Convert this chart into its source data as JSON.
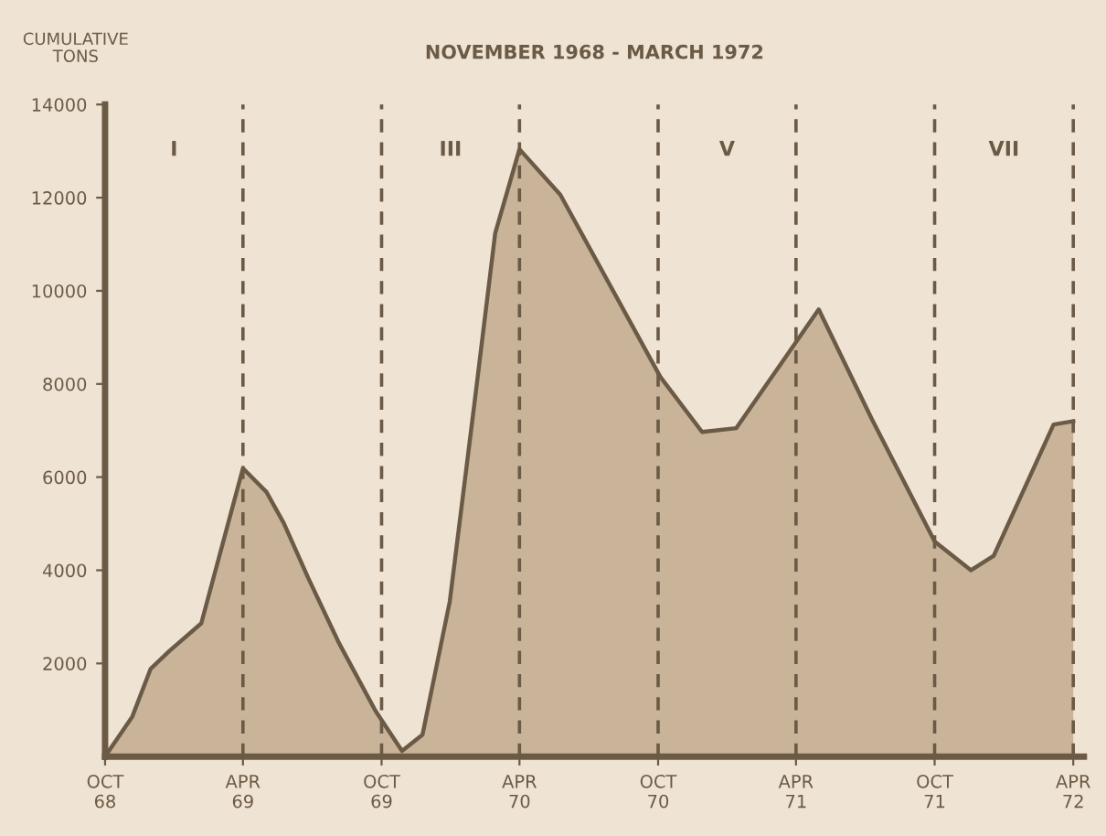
{
  "chart_data": {
    "type": "area",
    "title": "NOVEMBER 1968 - MARCH 1972",
    "ylabel": "CUMULATIVE\nTONS",
    "x": [
      "1968-10-01",
      "1968-11-06",
      "1968-11-30",
      "1968-12-25",
      "1969-02-05",
      "1969-04-01",
      "1969-05-02",
      "1969-05-25",
      "1969-06-26",
      "1969-08-06",
      "1969-09-23",
      "1969-10-28",
      "1969-11-24",
      "1969-12-30",
      "1970-02-01",
      "1970-02-28",
      "1970-04-01",
      "1970-05-25",
      "1970-10-04",
      "1970-11-28",
      "1971-01-12",
      "1971-05-01",
      "1971-07-10",
      "1971-10-01",
      "1971-11-18",
      "1971-12-18",
      "1972-03-06",
      "1972-04-01"
    ],
    "series": [
      {
        "color": "#c4ae93",
        "values": [
          0,
          860,
          1880,
          2270,
          2860,
          6190,
          5680,
          5010,
          3840,
          2430,
          980,
          120,
          470,
          3330,
          7640,
          11240,
          13040,
          12060,
          8150,
          6970,
          7050,
          9600,
          7250,
          4620,
          4000,
          4310,
          7130,
          7200
        ]
      }
    ],
    "xlim": [
      "1968-10-01",
      "1972-04-15"
    ],
    "xticks": [
      {
        "value": "1968-10-01",
        "label": "OCT\n68"
      },
      {
        "value": "1969-04-01",
        "label": "APR\n69"
      },
      {
        "value": "1969-10-01",
        "label": "OCT\n69"
      },
      {
        "value": "1970-04-01",
        "label": "APR\n70"
      },
      {
        "value": "1970-10-01",
        "label": "OCT\n70"
      },
      {
        "value": "1971-04-01",
        "label": "APR\n71"
      },
      {
        "value": "1971-10-01",
        "label": "OCT\n71"
      },
      {
        "value": "1972-04-01",
        "label": "APR\n72"
      }
    ],
    "ylim": [
      0,
      14000
    ],
    "yticks": [
      2000,
      4000,
      6000,
      8000,
      10000,
      12000,
      14000
    ],
    "ref_lines": [
      {
        "axis": "x",
        "value": "1969-04-01",
        "line_style": "dashed",
        "color": "#6b5a45"
      },
      {
        "axis": "x",
        "value": "1969-10-01",
        "line_style": "dashed",
        "color": "#6b5a45"
      },
      {
        "axis": "x",
        "value": "1970-04-01",
        "line_style": "dashed",
        "color": "#6b5a45"
      },
      {
        "axis": "x",
        "value": "1970-10-01",
        "line_style": "dashed",
        "color": "#6b5a45"
      },
      {
        "axis": "x",
        "value": "1971-04-01",
        "line_style": "dashed",
        "color": "#6b5a45"
      },
      {
        "axis": "x",
        "value": "1971-10-01",
        "line_style": "dashed",
        "color": "#6b5a45"
      },
      {
        "axis": "x",
        "value": "1972-04-01",
        "line_style": "dashed",
        "color": "#6b5a45"
      }
    ],
    "annotations": [
      "I",
      "III",
      "V",
      "VII"
    ],
    "grid": false,
    "legend": false
  }
}
